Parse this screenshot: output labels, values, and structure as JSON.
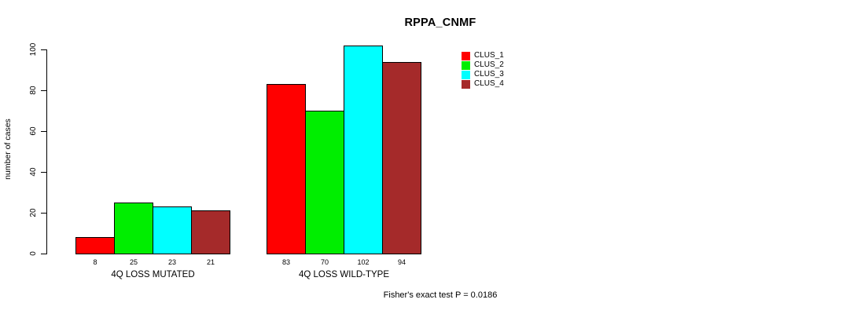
{
  "chart_data": {
    "type": "bar",
    "title": "RPPA_CNMF",
    "xlabel": "",
    "ylabel": "number of cases",
    "categories": [
      "4Q LOSS MUTATED",
      "4Q LOSS WILD-TYPE"
    ],
    "series": [
      {
        "name": "CLUS_1",
        "color": "#FF0000",
        "values": [
          8,
          83
        ]
      },
      {
        "name": "CLUS_2",
        "color": "#00EE00",
        "values": [
          25,
          70
        ]
      },
      {
        "name": "CLUS_3",
        "color": "#00FFFF",
        "values": [
          23,
          102
        ]
      },
      {
        "name": "CLUS_4",
        "color": "#A52A2A",
        "values": [
          21,
          94
        ]
      }
    ],
    "yticks": [
      0,
      20,
      40,
      60,
      80,
      100
    ],
    "ylim": [
      0,
      104
    ],
    "grid": false,
    "bar_value_labels": true,
    "legend_position": "top-right",
    "annotation": "Fisher's exact test P = 0.0186",
    "bar_border_color": "#000000",
    "background_color": "#FFFFFF"
  }
}
